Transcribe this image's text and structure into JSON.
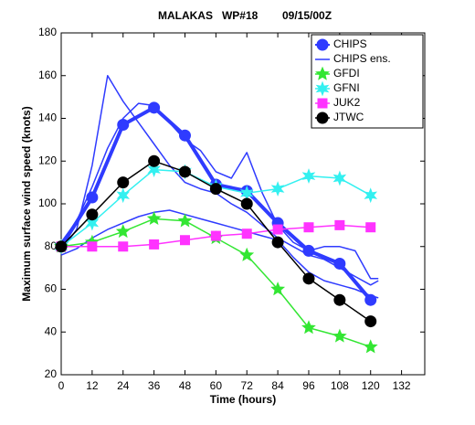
{
  "chart_data": {
    "type": "line",
    "title": "MALAKAS   WP#18        09/15/00Z",
    "x_label": "Time (hours)",
    "y_label": "Maximum surface wind speed (knots)",
    "xlim": [
      0,
      141
    ],
    "xticks": [
      0,
      12,
      24,
      36,
      48,
      60,
      72,
      84,
      96,
      108,
      120,
      132
    ],
    "ylim": [
      20,
      180
    ],
    "yticks": [
      20,
      40,
      60,
      80,
      100,
      120,
      140,
      160,
      180
    ],
    "legend": "top-right",
    "series": [
      {
        "name": "CHIPS",
        "color": "#2f3bff",
        "marker": "circle",
        "width": 4,
        "x": [
          0,
          12,
          24,
          36,
          48,
          60,
          72,
          84,
          96,
          108,
          120
        ],
        "values": [
          80,
          103,
          137,
          145,
          132,
          109,
          106,
          91,
          78,
          72,
          55
        ]
      },
      {
        "name": "CHIPS ens.",
        "color": "#2f3bff",
        "marker": "none",
        "width": 1.5,
        "x": [
          0,
          6,
          12,
          18,
          24,
          30,
          36,
          42,
          48,
          54,
          60,
          66,
          72,
          78,
          84,
          90,
          96,
          102,
          108,
          114,
          120,
          123
        ],
        "members": [
          [
            78,
            88,
            118,
            160,
            148,
            138,
            128,
            118,
            110,
            107,
            105,
            100,
            96,
            90,
            84,
            80,
            76,
            74,
            70,
            66,
            62,
            64
          ],
          [
            76,
            79,
            84,
            88,
            91,
            94,
            96,
            97,
            95,
            93,
            91,
            89,
            87,
            85,
            83,
            75,
            68,
            64,
            62,
            60,
            57,
            56
          ],
          [
            82,
            92,
            108,
            126,
            140,
            147,
            146,
            138,
            130,
            125,
            115,
            112,
            124,
            105,
            90,
            82,
            78,
            80,
            80,
            78,
            65,
            65
          ]
        ]
      },
      {
        "name": "GFDI",
        "color": "#33e633",
        "marker": "star",
        "width": 1.5,
        "x": [
          0,
          12,
          24,
          36,
          48,
          60,
          72,
          84,
          96,
          108,
          120
        ],
        "values": [
          80,
          82,
          87,
          93,
          92,
          84,
          76,
          60,
          42,
          38,
          33
        ]
      },
      {
        "name": "GFNI",
        "color": "#33f0f0",
        "marker": "star",
        "width": 1.5,
        "x": [
          0,
          12,
          24,
          36,
          48,
          60,
          72,
          84,
          96,
          108,
          120
        ],
        "values": [
          80,
          91,
          104,
          116,
          115,
          108,
          105,
          107,
          113,
          112,
          104
        ]
      },
      {
        "name": "JUK2",
        "color": "#ff33ff",
        "marker": "square",
        "width": 1.5,
        "x": [
          0,
          12,
          24,
          36,
          48,
          60,
          72,
          84,
          96,
          108,
          120
        ],
        "values": [
          80,
          80,
          80,
          81,
          83,
          85,
          86,
          88,
          89,
          90,
          89
        ]
      },
      {
        "name": "JTWC",
        "color": "#000000",
        "marker": "circle",
        "width": 1.5,
        "x": [
          0,
          12,
          24,
          36,
          48,
          60,
          72,
          84,
          96,
          108,
          120
        ],
        "values": [
          80,
          95,
          110,
          120,
          115,
          107,
          100,
          82,
          65,
          55,
          45
        ]
      }
    ]
  }
}
